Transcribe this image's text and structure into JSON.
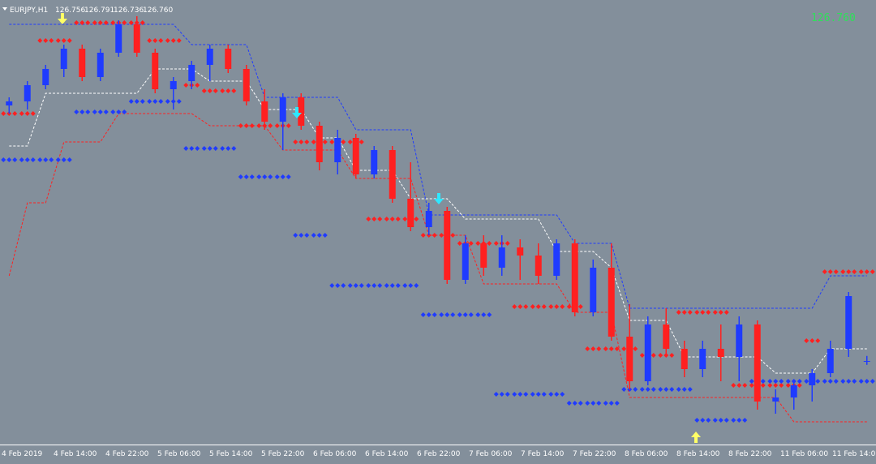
{
  "chart_data": {
    "type": "candlestick",
    "symbol": "EURJPY,H1",
    "ohlc_text": [
      "126.756",
      "126.791",
      "126.736",
      "126.760"
    ],
    "price_label": "126.760",
    "x_labels": [
      "4 Feb 2019",
      "4 Feb 14:00",
      "4 Feb 22:00",
      "5 Feb 06:00",
      "5 Feb 14:00",
      "5 Feb 22:00",
      "6 Feb 06:00",
      "6 Feb 14:00",
      "6 Feb 22:00",
      "7 Feb 06:00",
      "7 Feb 14:00",
      "7 Feb 22:00",
      "8 Feb 06:00",
      "8 Feb 14:00",
      "8 Feb 22:00",
      "11 Feb 06:00",
      "11 Feb 14:00"
    ],
    "bull_color": "#1f3bff",
    "bear_color": "#ff2020",
    "open": [
      128.335,
      128.36,
      128.46,
      128.56,
      128.685,
      128.51,
      128.66,
      128.835,
      128.66,
      128.435,
      128.485,
      128.585,
      128.685,
      128.56,
      128.36,
      128.235,
      128.385,
      128.21,
      127.985,
      128.135,
      127.91,
      128.06,
      127.76,
      127.585,
      127.685,
      127.26,
      127.485,
      127.335,
      127.46,
      127.41,
      127.285,
      127.485,
      127.06,
      127.335,
      126.91,
      126.635,
      126.985,
      126.835,
      126.71,
      126.835,
      126.785,
      126.985,
      126.51,
      126.535,
      126.61,
      126.685,
      126.835,
      126.756
    ],
    "high": [
      128.385,
      128.485,
      128.585,
      128.71,
      128.71,
      128.685,
      128.86,
      128.885,
      128.685,
      128.51,
      128.61,
      128.71,
      128.71,
      128.585,
      128.435,
      128.41,
      128.41,
      128.235,
      128.185,
      128.16,
      128.085,
      128.085,
      127.985,
      127.735,
      127.71,
      127.535,
      127.535,
      127.535,
      127.51,
      127.485,
      127.51,
      127.51,
      127.385,
      127.485,
      127.11,
      127.035,
      127.085,
      126.885,
      126.885,
      126.985,
      127.035,
      127.01,
      126.585,
      126.635,
      126.71,
      126.885,
      127.185,
      126.791
    ],
    "low": [
      128.285,
      128.31,
      128.435,
      128.51,
      128.485,
      128.485,
      128.635,
      128.635,
      128.41,
      128.31,
      128.435,
      128.485,
      128.535,
      128.335,
      128.185,
      128.06,
      128.185,
      127.935,
      127.91,
      127.885,
      127.885,
      127.735,
      127.56,
      127.535,
      127.235,
      127.235,
      127.285,
      127.285,
      127.26,
      127.235,
      127.26,
      127.035,
      127.035,
      126.885,
      126.585,
      126.61,
      126.785,
      126.66,
      126.66,
      126.635,
      126.635,
      126.46,
      126.435,
      126.46,
      126.51,
      126.66,
      126.785,
      126.736
    ],
    "close": [
      128.36,
      128.46,
      128.56,
      128.685,
      128.51,
      128.66,
      128.835,
      128.66,
      128.435,
      128.485,
      128.585,
      128.685,
      128.56,
      128.36,
      128.235,
      128.385,
      128.21,
      127.985,
      128.135,
      127.91,
      128.06,
      127.76,
      127.585,
      127.685,
      127.26,
      127.485,
      127.335,
      127.46,
      127.41,
      127.285,
      127.485,
      127.06,
      127.335,
      126.91,
      126.635,
      126.985,
      126.835,
      126.71,
      126.835,
      126.785,
      126.985,
      126.51,
      126.535,
      126.61,
      126.685,
      126.835,
      127.16,
      126.76
    ],
    "series": [
      {
        "color": "#1f3bff",
        "style": "dashed",
        "values": [
          128.835,
          128.835,
          128.835,
          128.835,
          128.835,
          128.835,
          128.835,
          128.835,
          128.835,
          128.835,
          128.71,
          128.71,
          128.71,
          128.71,
          128.385,
          128.385,
          128.385,
          128.385,
          128.385,
          128.185,
          128.185,
          128.185,
          128.185,
          127.66,
          127.66,
          127.66,
          127.66,
          127.66,
          127.66,
          127.66,
          127.66,
          127.485,
          127.485,
          127.485,
          127.085,
          127.085,
          127.085,
          127.085,
          127.085,
          127.085,
          127.085,
          127.085,
          127.085,
          127.085,
          127.085,
          127.285,
          127.285,
          127.285
        ]
      },
      {
        "color": "#ffffff",
        "style": "dashed",
        "values": [
          128.085,
          128.085,
          128.41,
          128.41,
          128.41,
          128.41,
          128.41,
          128.41,
          128.56,
          128.56,
          128.56,
          128.485,
          128.485,
          128.485,
          128.31,
          128.31,
          128.31,
          128.135,
          128.135,
          127.935,
          127.935,
          127.935,
          127.76,
          127.76,
          127.76,
          127.635,
          127.635,
          127.635,
          127.635,
          127.635,
          127.435,
          127.435,
          127.435,
          127.335,
          127.01,
          127.01,
          127.01,
          126.785,
          126.785,
          126.785,
          126.785,
          126.785,
          126.685,
          126.685,
          126.685,
          126.835,
          126.835,
          126.835
        ]
      },
      {
        "color": "#ff2020",
        "style": "dashed",
        "values": [
          127.285,
          127.735,
          127.735,
          128.11,
          128.11,
          128.11,
          128.285,
          128.285,
          128.285,
          128.285,
          128.285,
          128.21,
          128.21,
          128.21,
          128.21,
          128.06,
          128.06,
          128.06,
          128.06,
          127.885,
          127.885,
          127.885,
          127.885,
          127.535,
          127.535,
          127.535,
          127.235,
          127.235,
          127.235,
          127.235,
          127.235,
          127.06,
          127.06,
          127.06,
          126.535,
          126.535,
          126.535,
          126.535,
          126.535,
          126.535,
          126.535,
          126.535,
          126.535,
          126.385,
          126.385,
          126.385,
          126.385,
          126.385
        ]
      },
      {
        "color": "#ff2020",
        "style": "dots",
        "values": [
          128.285,
          128.285,
          128.735,
          128.735,
          128.845,
          128.845,
          128.845,
          128.845,
          128.735,
          128.735,
          128.46,
          128.425,
          128.425,
          128.21,
          128.21,
          128.21,
          128.11,
          128.11,
          128.11,
          128.11,
          127.635,
          127.635,
          127.635,
          127.535,
          127.535,
          127.485,
          127.485,
          127.485,
          127.095,
          127.095,
          127.095,
          127.095,
          126.835,
          126.835,
          126.835,
          126.795,
          126.795,
          127.06,
          127.06,
          127.06,
          126.61,
          126.61,
          126.61,
          126.61,
          126.885,
          127.31,
          127.31,
          127.31
        ]
      },
      {
        "color": "#1f3bff",
        "style": "dots",
        "values": [
          128.0,
          128.0,
          128.0,
          128.0,
          128.295,
          128.295,
          128.295,
          128.36,
          128.36,
          128.36,
          128.07,
          128.07,
          128.07,
          127.895,
          127.895,
          127.895,
          127.535,
          127.535,
          127.225,
          127.225,
          127.225,
          127.225,
          127.225,
          127.045,
          127.045,
          127.045,
          127.045,
          126.555,
          126.555,
          126.555,
          126.555,
          126.5,
          126.5,
          126.5,
          126.585,
          126.585,
          126.585,
          126.585,
          126.395,
          126.395,
          126.395,
          126.635,
          126.635,
          126.635,
          126.635,
          126.635,
          126.635,
          126.635
        ]
      }
    ]
  }
}
